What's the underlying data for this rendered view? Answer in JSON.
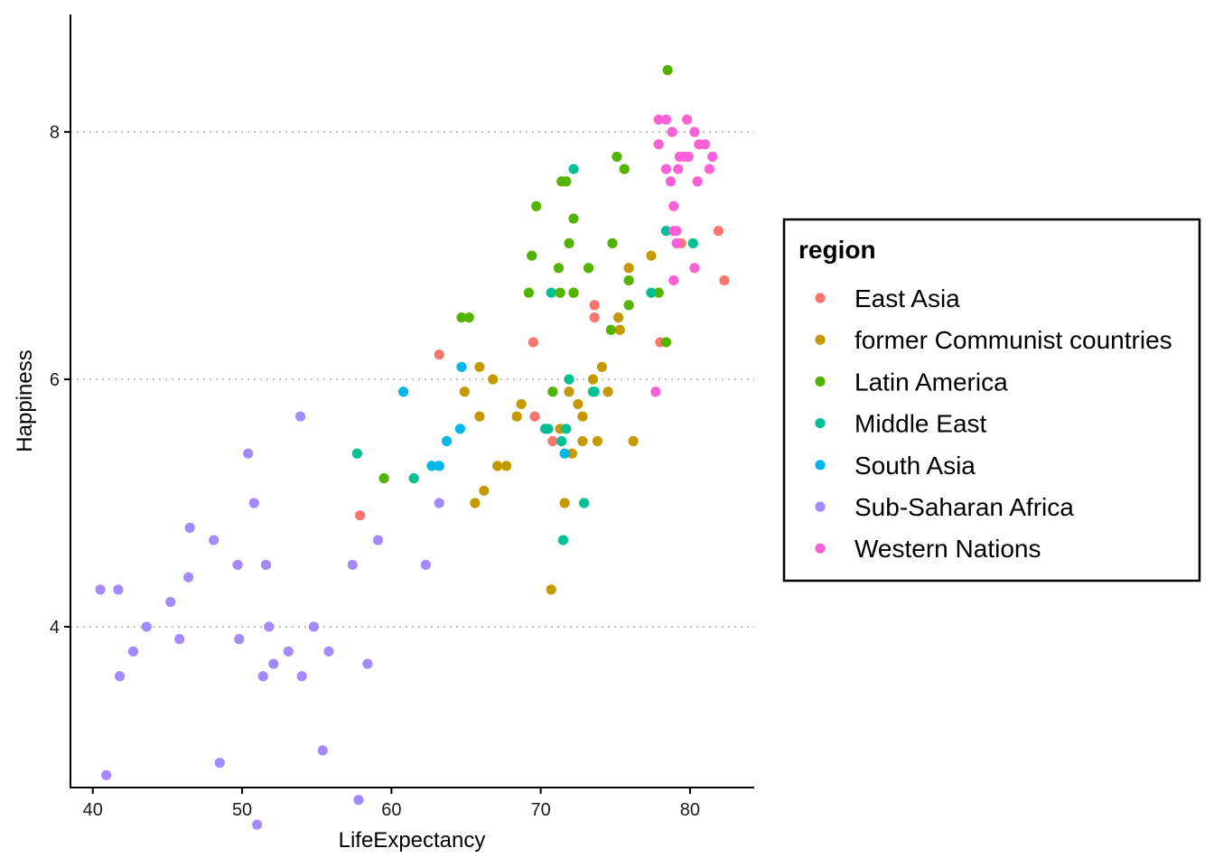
{
  "chart_data": {
    "type": "scatter",
    "xlabel": "LifeExpectancy",
    "ylabel": "Happiness",
    "xlim": [
      38.5,
      84.3
    ],
    "ylim": [
      2.7,
      8.95
    ],
    "x_ticks": [
      40,
      50,
      60,
      70,
      80
    ],
    "y_ticks": [
      4,
      6,
      8
    ],
    "grid": "horizontal dotted at major y ticks",
    "legend": {
      "title": "region",
      "placement": "right"
    },
    "series": [
      {
        "name": "East Asia",
        "color": "#F8766D",
        "points": [
          [
            82.3,
            6.8
          ],
          [
            81.9,
            7.2
          ],
          [
            79.4,
            7.1
          ],
          [
            78.0,
            6.3
          ],
          [
            73.6,
            6.6
          ],
          [
            73.6,
            6.5
          ],
          [
            72.2,
            6.7
          ],
          [
            69.6,
            5.7
          ],
          [
            70.8,
            5.5
          ],
          [
            69.5,
            6.3
          ],
          [
            63.2,
            6.2
          ],
          [
            57.9,
            4.9
          ]
        ]
      },
      {
        "name": "former Communist countries",
        "color": "#C49A00",
        "points": [
          [
            70.7,
            4.3
          ],
          [
            71.6,
            5.0
          ],
          [
            72.1,
            5.4
          ],
          [
            71.3,
            5.6
          ],
          [
            71.9,
            5.9
          ],
          [
            72.5,
            5.8
          ],
          [
            72.8,
            5.7
          ],
          [
            72.8,
            5.5
          ],
          [
            73.5,
            6.0
          ],
          [
            73.8,
            5.5
          ],
          [
            74.1,
            6.1
          ],
          [
            74.5,
            5.9
          ],
          [
            75.2,
            6.5
          ],
          [
            75.3,
            6.4
          ],
          [
            75.9,
            6.9
          ],
          [
            76.2,
            5.5
          ],
          [
            77.4,
            7.0
          ],
          [
            68.7,
            5.8
          ],
          [
            68.4,
            5.7
          ],
          [
            67.7,
            5.3
          ],
          [
            67.1,
            5.3
          ],
          [
            66.8,
            6.0
          ],
          [
            66.2,
            5.1
          ],
          [
            65.9,
            6.1
          ],
          [
            65.9,
            5.7
          ],
          [
            65.6,
            5.0
          ],
          [
            64.9,
            5.9
          ]
        ]
      },
      {
        "name": "Latin America",
        "color": "#53B400",
        "points": [
          [
            78.5,
            8.5
          ],
          [
            75.1,
            7.8
          ],
          [
            75.6,
            7.7
          ],
          [
            71.4,
            7.6
          ],
          [
            71.7,
            7.6
          ],
          [
            72.2,
            7.3
          ],
          [
            69.7,
            7.4
          ],
          [
            71.9,
            7.1
          ],
          [
            74.8,
            7.1
          ],
          [
            69.4,
            7.0
          ],
          [
            71.2,
            6.9
          ],
          [
            73.2,
            6.9
          ],
          [
            69.2,
            6.7
          ],
          [
            71.3,
            6.7
          ],
          [
            72.2,
            6.7
          ],
          [
            75.9,
            6.8
          ],
          [
            77.9,
            6.7
          ],
          [
            75.9,
            6.6
          ],
          [
            64.7,
            6.5
          ],
          [
            65.2,
            6.5
          ],
          [
            74.7,
            6.4
          ],
          [
            78.4,
            6.3
          ],
          [
            70.8,
            5.9
          ],
          [
            59.5,
            5.2
          ]
        ]
      },
      {
        "name": "Middle East",
        "color": "#00C094",
        "points": [
          [
            72.2,
            7.7
          ],
          [
            78.4,
            7.2
          ],
          [
            80.2,
            7.1
          ],
          [
            77.4,
            6.7
          ],
          [
            70.7,
            6.7
          ],
          [
            71.9,
            6.0
          ],
          [
            73.5,
            5.9
          ],
          [
            73.6,
            5.9
          ],
          [
            70.3,
            5.6
          ],
          [
            70.5,
            5.6
          ],
          [
            71.7,
            5.6
          ],
          [
            71.4,
            5.5
          ],
          [
            57.7,
            5.4
          ],
          [
            61.5,
            5.2
          ],
          [
            72.9,
            5.0
          ],
          [
            71.5,
            4.7
          ]
        ]
      },
      {
        "name": "South Asia",
        "color": "#00B6EB",
        "points": [
          [
            60.8,
            5.9
          ],
          [
            64.7,
            6.1
          ],
          [
            64.6,
            5.6
          ],
          [
            63.7,
            5.5
          ],
          [
            62.7,
            5.3
          ],
          [
            63.2,
            5.3
          ],
          [
            71.6,
            5.4
          ]
        ]
      },
      {
        "name": "Sub-Saharan Africa",
        "color": "#A58AFF",
        "points": [
          [
            53.9,
            5.7
          ],
          [
            50.4,
            5.4
          ],
          [
            50.8,
            5.0
          ],
          [
            46.5,
            4.8
          ],
          [
            48.1,
            4.7
          ],
          [
            59.1,
            4.7
          ],
          [
            49.7,
            4.5
          ],
          [
            51.6,
            4.5
          ],
          [
            57.4,
            4.5
          ],
          [
            62.3,
            4.5
          ],
          [
            63.2,
            5.0
          ],
          [
            46.4,
            4.4
          ],
          [
            40.5,
            4.3
          ],
          [
            41.7,
            4.3
          ],
          [
            45.2,
            4.2
          ],
          [
            43.6,
            4.0
          ],
          [
            51.8,
            4.0
          ],
          [
            54.8,
            4.0
          ],
          [
            45.8,
            3.9
          ],
          [
            49.8,
            3.9
          ],
          [
            42.7,
            3.8
          ],
          [
            53.1,
            3.8
          ],
          [
            55.8,
            3.8
          ],
          [
            52.1,
            3.7
          ],
          [
            58.4,
            3.7
          ],
          [
            41.8,
            3.6
          ],
          [
            51.4,
            3.6
          ],
          [
            54.0,
            3.6
          ],
          [
            48.5,
            2.9
          ],
          [
            55.4,
            3.0
          ],
          [
            40.9,
            2.8
          ],
          [
            57.8,
            2.6
          ],
          [
            51.0,
            2.4
          ]
        ]
      },
      {
        "name": "Western Nations",
        "color": "#FB61D7",
        "points": [
          [
            77.9,
            8.1
          ],
          [
            78.4,
            8.1
          ],
          [
            79.8,
            8.1
          ],
          [
            78.8,
            8.0
          ],
          [
            80.3,
            8.0
          ],
          [
            77.9,
            7.9
          ],
          [
            80.6,
            7.9
          ],
          [
            81.0,
            7.9
          ],
          [
            79.3,
            7.8
          ],
          [
            79.6,
            7.8
          ],
          [
            79.9,
            7.8
          ],
          [
            81.5,
            7.8
          ],
          [
            78.4,
            7.7
          ],
          [
            79.2,
            7.7
          ],
          [
            81.3,
            7.7
          ],
          [
            78.7,
            7.6
          ],
          [
            80.5,
            7.6
          ],
          [
            78.9,
            7.4
          ],
          [
            78.9,
            7.2
          ],
          [
            79.1,
            7.2
          ],
          [
            79.1,
            7.1
          ],
          [
            80.3,
            6.9
          ],
          [
            78.9,
            6.8
          ],
          [
            77.7,
            5.9
          ]
        ]
      }
    ]
  }
}
